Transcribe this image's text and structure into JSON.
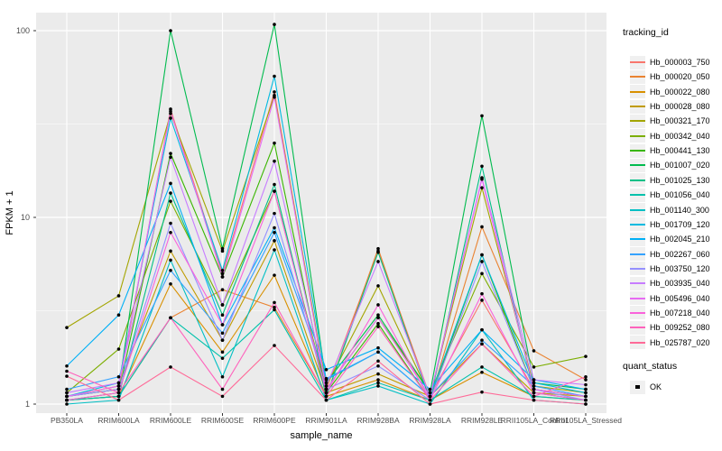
{
  "figure": {
    "background": "#FFFFFF",
    "panel_bg": "#EBEBEB",
    "grid_major_color": "#FFFFFF",
    "grid_minor_color": "#FFFFFF",
    "point_color": "#000000",
    "tick_color": "#333333"
  },
  "axes": {
    "y": {
      "title": "FPKM + 1",
      "ticks": [
        "100",
        "10",
        "1"
      ],
      "tick_values": [
        100,
        10,
        1
      ],
      "scale": "log10"
    },
    "x": {
      "title": "sample_name"
    }
  },
  "legend": {
    "tracking_title": "tracking_id",
    "quant_title": "quant_status",
    "quant_items": [
      {
        "label": "OK",
        "symbol": "black-square"
      }
    ]
  },
  "chart_data": {
    "type": "line",
    "title": "",
    "xlabel": "sample_name",
    "ylabel": "FPKM + 1",
    "yscale": "log10",
    "ylim": [
      1,
      120
    ],
    "grid": true,
    "legend_position": "right",
    "categories": [
      "PB350LA",
      "RRIM600LA",
      "RRIM600LE",
      "RRIM600SE",
      "RRIM600PE",
      "RRIM901LA",
      "RRIM928BA",
      "RRIM928LA",
      "RRIM928LE",
      "RRII105LA_Control",
      "RRII105LA_Stressed"
    ],
    "series": [
      {
        "name": "Hb_000003_750",
        "color": "#F8766D",
        "values": [
          1.1,
          1.2,
          38,
          5.0,
          47,
          1.2,
          6.6,
          1.1,
          3.6,
          1.2,
          1.1
        ]
      },
      {
        "name": "Hb_000020_050",
        "color": "#EA8331",
        "values": [
          1.05,
          1.1,
          2.9,
          4.1,
          3.3,
          1.1,
          6.8,
          1.05,
          8.9,
          1.93,
          1.35
        ]
      },
      {
        "name": "Hb_000022_080",
        "color": "#D89000",
        "values": [
          1.05,
          1.1,
          4.4,
          1.9,
          4.9,
          1.1,
          1.35,
          1.05,
          1.48,
          1.1,
          1.05
        ]
      },
      {
        "name": "Hb_000028_080",
        "color": "#C09B00",
        "values": [
          1.1,
          1.25,
          6.6,
          2.2,
          7.5,
          1.15,
          1.45,
          1.1,
          2.1,
          1.15,
          1.1
        ]
      },
      {
        "name": "Hb_000321_170",
        "color": "#A3A500",
        "values": [
          2.57,
          3.8,
          36,
          6.6,
          45,
          1.25,
          4.3,
          1.1,
          14.4,
          1.25,
          1.15
        ]
      },
      {
        "name": "Hb_000342_040",
        "color": "#7CAE00",
        "values": [
          1.15,
          1.97,
          12.2,
          3.4,
          13.8,
          1.2,
          2.9,
          1.15,
          5.0,
          1.58,
          1.8
        ]
      },
      {
        "name": "Hb_000441_130",
        "color": "#39B600",
        "values": [
          1.05,
          1.15,
          22,
          4.8,
          25,
          1.15,
          2.7,
          1.05,
          6.3,
          1.2,
          1.1
        ]
      },
      {
        "name": "Hb_001007_020",
        "color": "#00BB4E",
        "values": [
          1.1,
          1.2,
          100,
          6.8,
          108,
          1.3,
          3.0,
          1.15,
          35,
          1.3,
          1.2
        ]
      },
      {
        "name": "Hb_001025_130",
        "color": "#00C087",
        "values": [
          1.05,
          1.1,
          13.5,
          3.0,
          15.0,
          1.1,
          6.5,
          1.05,
          18.8,
          1.15,
          1.05
        ]
      },
      {
        "name": "Hb_001056_040",
        "color": "#00C1AB",
        "values": [
          1.05,
          1.1,
          2.9,
          1.76,
          3.2,
          1.05,
          1.3,
          1.05,
          1.58,
          1.1,
          1.05
        ]
      },
      {
        "name": "Hb_001140_300",
        "color": "#00BFC4",
        "values": [
          1.0,
          1.05,
          5.9,
          1.4,
          6.7,
          1.05,
          1.25,
          1.0,
          2.5,
          1.05,
          1.0
        ]
      },
      {
        "name": "Hb_001709_120",
        "color": "#00BAE0",
        "values": [
          1.1,
          1.3,
          34,
          5.2,
          57,
          1.35,
          1.9,
          1.1,
          6.3,
          1.3,
          1.15
        ]
      },
      {
        "name": "Hb_002045_210",
        "color": "#00B0F6",
        "values": [
          1.6,
          3.0,
          15.2,
          2.66,
          8.8,
          1.53,
          2.0,
          1.2,
          2.5,
          1.35,
          1.2
        ]
      },
      {
        "name": "Hb_002267_060",
        "color": "#35A2FF",
        "values": [
          1.2,
          1.4,
          5.2,
          2.4,
          8.3,
          1.37,
          1.9,
          1.1,
          2.2,
          1.25,
          1.1
        ]
      },
      {
        "name": "Hb_003750_120",
        "color": "#9590FF",
        "values": [
          1.1,
          1.2,
          9.3,
          2.2,
          10.5,
          1.2,
          1.6,
          1.05,
          5.8,
          1.2,
          1.05
        ]
      },
      {
        "name": "Hb_003935_040",
        "color": "#C77CFF",
        "values": [
          1.15,
          1.3,
          21,
          3.4,
          20,
          1.25,
          5.8,
          1.1,
          16.3,
          1.35,
          1.27
        ]
      },
      {
        "name": "Hb_005496_040",
        "color": "#E76BF3",
        "values": [
          1.1,
          1.25,
          37,
          4.8,
          44,
          1.2,
          2.9,
          1.1,
          16.0,
          1.2,
          1.1
        ]
      },
      {
        "name": "Hb_007218_040",
        "color": "#FA62DB",
        "values": [
          1.05,
          1.15,
          8.3,
          2.66,
          13.8,
          1.15,
          3.4,
          1.05,
          3.9,
          1.15,
          1.05
        ]
      },
      {
        "name": "Hb_009252_080",
        "color": "#FF62BC",
        "values": [
          1.5,
          1.15,
          2.9,
          1.2,
          3.5,
          1.1,
          2.6,
          1.05,
          2.1,
          1.1,
          1.4
        ]
      },
      {
        "name": "Hb_025787_020",
        "color": "#FF6A98",
        "values": [
          1.41,
          1.05,
          1.58,
          1.1,
          2.06,
          1.05,
          1.7,
          1.0,
          1.16,
          1.05,
          1.0
        ]
      }
    ]
  }
}
